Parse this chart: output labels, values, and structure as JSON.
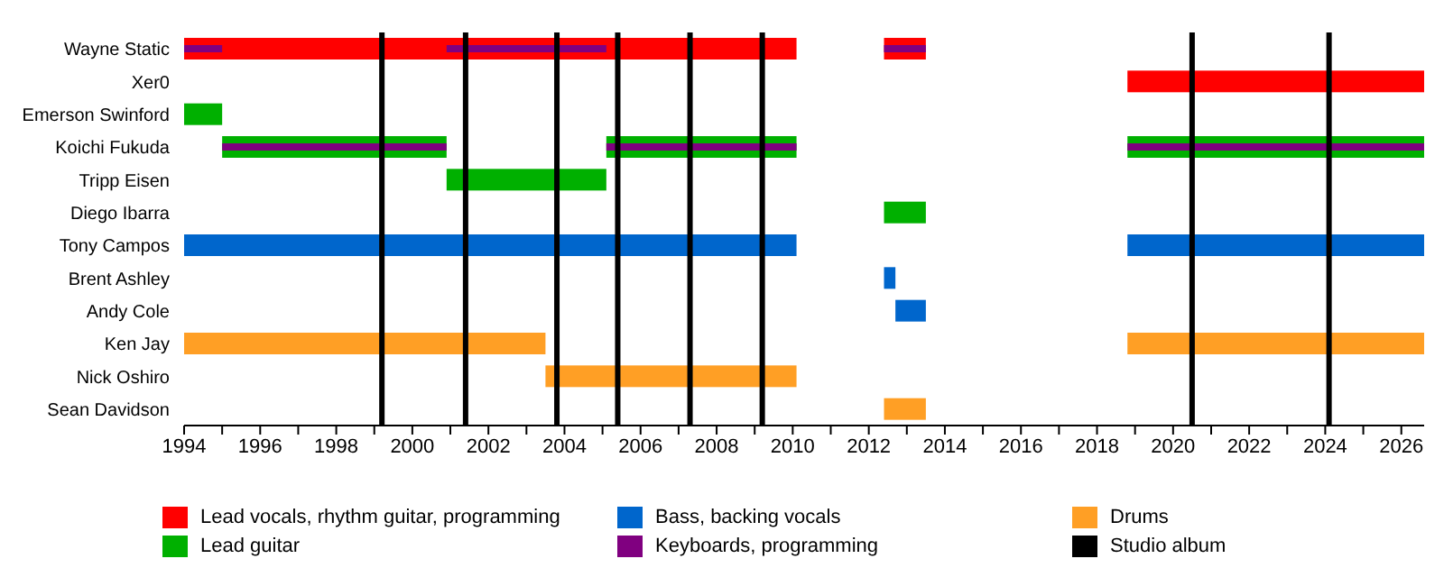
{
  "chart_data": {
    "type": "bar",
    "orientation": "horizontal",
    "categories": [
      "Wayne Static",
      "Xer0",
      "Emerson Swinford",
      "Koichi Fukuda",
      "Tripp Eisen",
      "Diego Ibarra",
      "Tony Campos",
      "Brent Ashley",
      "Andy Cole",
      "Ken Jay",
      "Nick Oshiro",
      "Sean Davidson"
    ],
    "series": [
      {
        "name": "Lead vocals, rhythm guitar, programming",
        "color": "#ff0000",
        "base": [
          1994,
          2018.8,
          null,
          null,
          null,
          null,
          null,
          null,
          null,
          null,
          null,
          null
        ],
        "values": [
          16.1,
          7.8,
          null,
          null,
          null,
          null,
          null,
          null,
          null,
          null,
          null,
          null
        ]
      },
      {
        "color": "#ff0000",
        "base": [
          2012.4,
          null,
          null,
          null,
          null,
          null,
          null,
          null,
          null,
          null,
          null,
          null
        ],
        "values": [
          1.1,
          null,
          null,
          null,
          null,
          null,
          null,
          null,
          null,
          null,
          null,
          null
        ]
      },
      {
        "name": "Bass, backing vocals",
        "color": "#0066cc",
        "base": [
          null,
          null,
          null,
          null,
          null,
          null,
          1994,
          2012.4,
          2012.7,
          null,
          null,
          null
        ],
        "values": [
          null,
          null,
          null,
          null,
          null,
          null,
          16.1,
          0.3,
          0.8,
          null,
          null,
          null
        ]
      },
      {
        "color": "#0066cc",
        "base": [
          null,
          null,
          null,
          null,
          null,
          null,
          2018.8,
          null,
          null,
          null,
          null,
          null
        ],
        "values": [
          null,
          null,
          null,
          null,
          null,
          null,
          7.8,
          null,
          null,
          null,
          null,
          null
        ]
      },
      {
        "name": "Drums",
        "color": "#ff9f25",
        "base": [
          null,
          null,
          null,
          null,
          null,
          null,
          null,
          null,
          null,
          1994,
          2003.5,
          2012.4
        ],
        "values": [
          null,
          null,
          null,
          null,
          null,
          null,
          null,
          null,
          null,
          9.5,
          6.6,
          1.1
        ]
      },
      {
        "color": "#ff9f25",
        "base": [
          null,
          null,
          null,
          null,
          null,
          null,
          null,
          null,
          null,
          2018.8,
          null,
          null
        ],
        "values": [
          null,
          null,
          null,
          null,
          null,
          null,
          null,
          null,
          null,
          7.8,
          null,
          null
        ]
      },
      {
        "name": "Lead guitar",
        "color": "#00b000",
        "base": [
          null,
          null,
          1994,
          1995,
          2000.9,
          2012.4,
          null,
          null,
          null,
          null,
          null,
          null
        ],
        "values": [
          null,
          null,
          1,
          5.9,
          4.2,
          1.1,
          null,
          null,
          null,
          null,
          null,
          null
        ]
      },
      {
        "color": "#00b000",
        "base": [
          null,
          null,
          null,
          2005.1,
          null,
          null,
          null,
          null,
          null,
          null,
          null,
          null
        ],
        "values": [
          null,
          null,
          null,
          5.0,
          null,
          null,
          null,
          null,
          null,
          null,
          null,
          null
        ]
      },
      {
        "color": "#00b000",
        "base": [
          null,
          null,
          null,
          2018.8,
          null,
          null,
          null,
          null,
          null,
          null,
          null,
          null
        ],
        "values": [
          null,
          null,
          null,
          7.8,
          null,
          null,
          null,
          null,
          null,
          null,
          null,
          null
        ]
      },
      {
        "name": "Keyboards, programming",
        "color": "#800080",
        "base": [
          1994,
          null,
          null,
          1995,
          null,
          null,
          null,
          null,
          null,
          null,
          null,
          null
        ],
        "values": [
          1,
          null,
          null,
          5.9,
          null,
          null,
          null,
          null,
          null,
          null,
          null,
          null
        ]
      },
      {
        "color": "#800080",
        "base": [
          2000.9,
          null,
          null,
          2005.1,
          null,
          null,
          null,
          null,
          null,
          null,
          null,
          null
        ],
        "values": [
          4.2,
          null,
          null,
          5.0,
          null,
          null,
          null,
          null,
          null,
          null,
          null,
          null
        ]
      },
      {
        "color": "#800080",
        "base": [
          2012.4,
          null,
          null,
          2018.8,
          null,
          null,
          null,
          null,
          null,
          null,
          null,
          null
        ],
        "values": [
          1.1,
          null,
          null,
          7.8,
          null,
          null,
          null,
          null,
          null,
          null,
          null,
          null
        ]
      }
    ],
    "xlim": [
      1994,
      2026.6
    ],
    "xticks": [
      1994,
      {
        "value": 1995,
        "label": null
      },
      1996,
      {
        "value": 1997,
        "label": null
      },
      1998,
      {
        "value": 1999,
        "label": null
      },
      2000,
      {
        "value": 2001,
        "label": null
      },
      2002,
      {
        "value": 2003,
        "label": null
      },
      2004,
      {
        "value": 2005,
        "label": null
      },
      2006,
      {
        "value": 2007,
        "label": null
      },
      2008,
      {
        "value": 2009,
        "label": null
      },
      2010,
      {
        "value": 2011,
        "label": null
      },
      2012,
      {
        "value": 2013,
        "label": null
      },
      2014,
      {
        "value": 2015,
        "label": null
      },
      2016,
      {
        "value": 2017,
        "label": null
      },
      2018,
      {
        "value": 2019,
        "label": null
      },
      2020,
      {
        "value": 2021,
        "label": null
      },
      2022,
      {
        "value": 2023,
        "label": null
      },
      2024,
      {
        "value": 2025,
        "label": null
      },
      2026
    ],
    "ref_lines": [
      {
        "axis": "x",
        "value": 1999.2,
        "label": "Studio album",
        "color": "#000000"
      },
      {
        "axis": "x",
        "value": 2001.4,
        "color": "#000000"
      },
      {
        "axis": "x",
        "value": 2003.8,
        "color": "#000000"
      },
      {
        "axis": "x",
        "value": 2005.4,
        "color": "#000000"
      },
      {
        "axis": "x",
        "value": 2007.3,
        "color": "#000000"
      },
      {
        "axis": "x",
        "value": 2009.2,
        "color": "#000000"
      },
      {
        "axis": "x",
        "value": 2020.5,
        "color": "#000000"
      },
      {
        "axis": "x",
        "value": 2024.1,
        "color": "#000000"
      }
    ],
    "legend": "bottom"
  }
}
